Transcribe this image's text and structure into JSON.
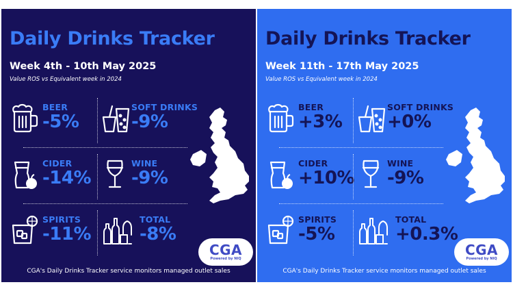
{
  "colors": {
    "left_background": "#17115a",
    "right_background": "#2f6df0",
    "left_accent": "#3a7cf6",
    "right_accent": "#141456",
    "icon_line": "#ffffff"
  },
  "panels": [
    {
      "title": "Daily Drinks Tracker",
      "week": "Week 4th - 10th May 2025",
      "subtitle": "Value ROS vs Equivalent week in 2024",
      "categories": [
        {
          "label": "BEER",
          "value": "-5%",
          "icon": "beer-mug-icon"
        },
        {
          "label": "SOFT DRINKS",
          "value": "-9%",
          "icon": "soft-drinks-icon"
        },
        {
          "label": "CIDER",
          "value": "-14%",
          "icon": "cider-glass-icon"
        },
        {
          "label": "WINE",
          "value": "-9%",
          "icon": "wine-glass-icon"
        },
        {
          "label": "SPIRITS",
          "value": "-11%",
          "icon": "spirits-tumbler-icon"
        },
        {
          "label": "TOTAL",
          "value": "-8%",
          "icon": "bottles-icon"
        }
      ],
      "logo": {
        "text": "CGA",
        "tagline": "Powered by NIQ"
      },
      "footer": "CGA's Daily Drinks Tracker service monitors managed outlet sales"
    },
    {
      "title": "Daily Drinks Tracker",
      "week": "Week 11th - 17th May 2025",
      "subtitle": "Value ROS vs Equivalent week in 2024",
      "categories": [
        {
          "label": "BEER",
          "value": "+3%",
          "icon": "beer-mug-icon"
        },
        {
          "label": "SOFT DRINKS",
          "value": "+0%",
          "icon": "soft-drinks-icon"
        },
        {
          "label": "CIDER",
          "value": "+10%",
          "icon": "cider-glass-icon"
        },
        {
          "label": "WINE",
          "value": "-9%",
          "icon": "wine-glass-icon"
        },
        {
          "label": "SPIRITS",
          "value": "-5%",
          "icon": "spirits-tumbler-icon"
        },
        {
          "label": "TOTAL",
          "value": "+0.3%",
          "icon": "bottles-icon"
        }
      ],
      "logo": {
        "text": "CGA",
        "tagline": "Powered by NIQ"
      },
      "footer": "CGA's Daily Drinks Tracker service monitors managed outlet sales"
    }
  ]
}
